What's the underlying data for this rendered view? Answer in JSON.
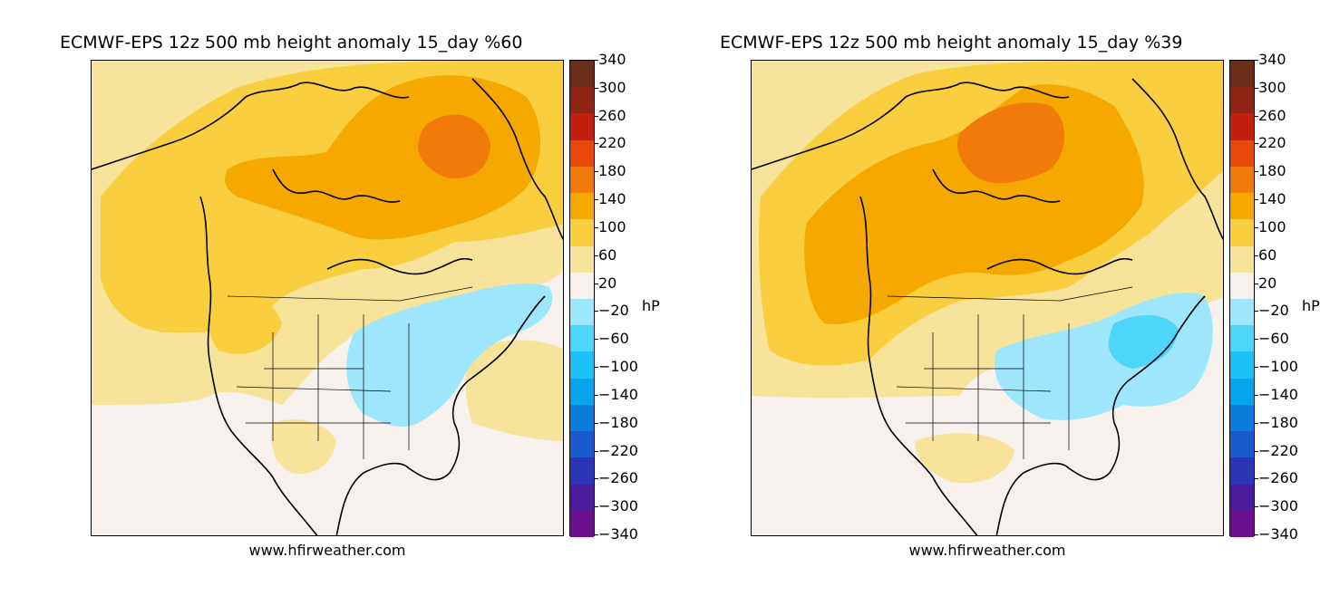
{
  "panels": [
    {
      "title": "ECMWF-EPS 12z 500 mb height anomaly 15_day %60",
      "credit": "www.hfirweather.com",
      "unit": "hP"
    },
    {
      "title": "ECMWF-EPS 12z 500 mb height anomaly 15_day %39",
      "credit": "www.hfirweather.com",
      "unit": "hP"
    }
  ],
  "colorbar": {
    "ticks": [
      "340",
      "300",
      "260",
      "220",
      "180",
      "140",
      "100",
      "60",
      "20",
      "−20",
      "−60",
      "−100",
      "−140",
      "−180",
      "−220",
      "−260",
      "−300",
      "−340"
    ],
    "colors": [
      "#6b2e18",
      "#8e2414",
      "#c21f0f",
      "#e8480a",
      "#f07a0a",
      "#f5a800",
      "#f9cf3f",
      "#f8e39a",
      "#f6f1ec",
      "#9ee6fb",
      "#4dd6fa",
      "#1cc2f6",
      "#07a6ec",
      "#0a7ddb",
      "#1a5bcc",
      "#2c36b4",
      "#4b1c9e",
      "#6c0f8e"
    ]
  },
  "chart_data": [
    {
      "type": "map",
      "title": "ECMWF-EPS 12z 500 mb height anomaly 15_day %60",
      "region": "North America",
      "colorbar_levels": [
        -340,
        -300,
        -260,
        -220,
        -180,
        -140,
        -100,
        -60,
        -20,
        20,
        60,
        100,
        140,
        180,
        220,
        260,
        300,
        340
      ],
      "colorbar_unit": "hP",
      "features": {
        "max_positive_anomaly_range": [
          140,
          180
        ],
        "max_positive_location": "Baffin Island / Greenland",
        "negative_anomaly_range": [
          -60,
          -20
        ],
        "negative_location": "Eastern United States / Great Lakes"
      }
    },
    {
      "type": "map",
      "title": "ECMWF-EPS 12z 500 mb height anomaly 15_day %39",
      "region": "North America",
      "colorbar_levels": [
        -340,
        -300,
        -260,
        -220,
        -180,
        -140,
        -100,
        -60,
        -20,
        20,
        60,
        100,
        140,
        180,
        220,
        260,
        300,
        340
      ],
      "colorbar_unit": "hP",
      "features": {
        "max_positive_anomaly_range": [
          140,
          180
        ],
        "max_positive_location": "Canadian Arctic Archipelago",
        "negative_anomaly_range": [
          -100,
          -20
        ],
        "negative_location": "Eastern United States / Atlantic coast"
      }
    }
  ]
}
